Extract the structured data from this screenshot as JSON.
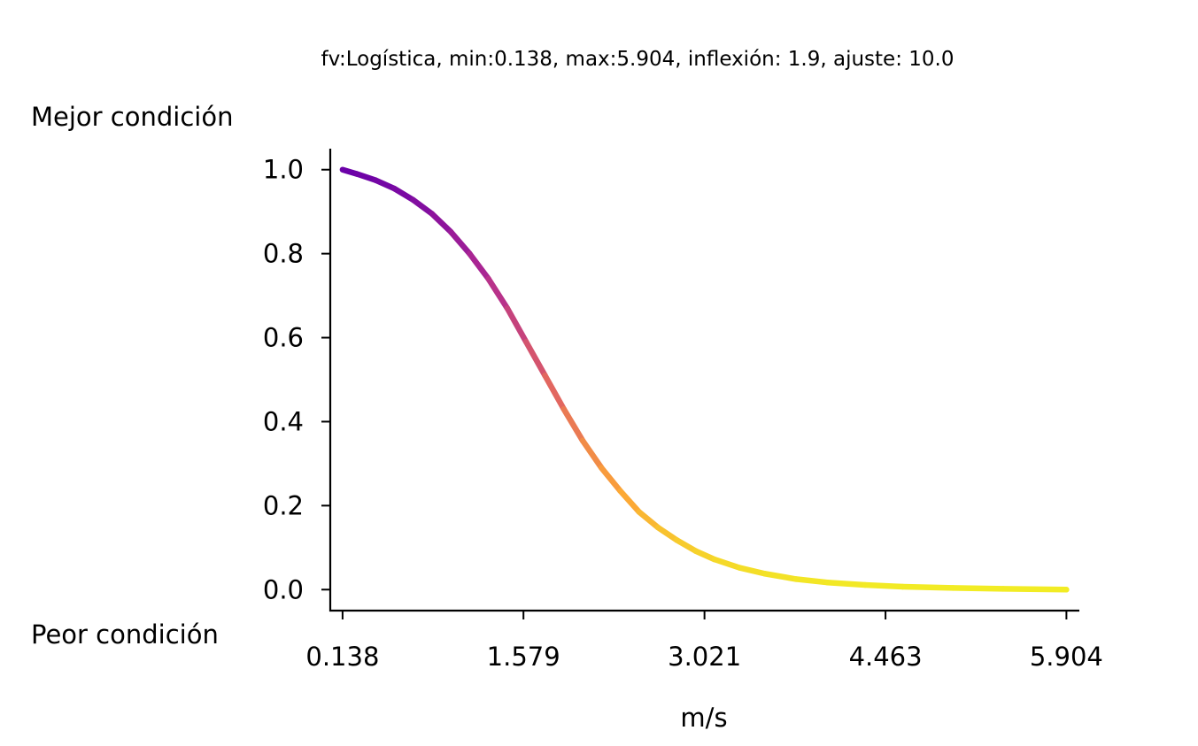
{
  "chart_data": {
    "type": "line",
    "title": "fv:Logística, min:0.138, max:5.904, inflexión: 1.9, ajuste: 10.0",
    "xlabel": "m/s",
    "ylabel": "",
    "best_label": "Mejor condición",
    "worst_label": "Peor condición",
    "function": {
      "name": "Logística",
      "min": 0.138,
      "max": 5.904,
      "inflection": 1.9,
      "adjustment": 10.0
    },
    "x_ticks": [
      "0.138",
      "1.579",
      "3.021",
      "4.463",
      "5.904"
    ],
    "x_tick_values": [
      0.138,
      1.579,
      3.021,
      4.463,
      5.904
    ],
    "y_ticks": [
      "0.0",
      "0.2",
      "0.4",
      "0.6",
      "0.8",
      "1.0"
    ],
    "y_tick_values": [
      0.0,
      0.2,
      0.4,
      0.6,
      0.8,
      1.0
    ],
    "xlim": [
      0.04,
      6.0
    ],
    "ylim": [
      -0.05,
      1.05
    ],
    "colormap": [
      "#0d0887",
      "#6a00a8",
      "#b12a90",
      "#e16462",
      "#fca636",
      "#f0f921"
    ],
    "series": [
      {
        "name": "fv",
        "x": [
          0.138,
          0.25,
          0.4,
          0.55,
          0.7,
          0.85,
          1.0,
          1.15,
          1.3,
          1.45,
          1.6,
          1.75,
          1.9,
          2.05,
          2.2,
          2.35,
          2.5,
          2.65,
          2.8,
          2.95,
          3.1,
          3.3,
          3.5,
          3.75,
          4.0,
          4.3,
          4.6,
          5.0,
          5.4,
          5.904
        ],
        "y": [
          1.0,
          0.99,
          0.975,
          0.955,
          0.928,
          0.895,
          0.852,
          0.8,
          0.74,
          0.67,
          0.59,
          0.51,
          0.43,
          0.355,
          0.29,
          0.235,
          0.185,
          0.148,
          0.118,
          0.092,
          0.072,
          0.052,
          0.038,
          0.025,
          0.017,
          0.011,
          0.007,
          0.004,
          0.002,
          0.0
        ]
      }
    ]
  }
}
